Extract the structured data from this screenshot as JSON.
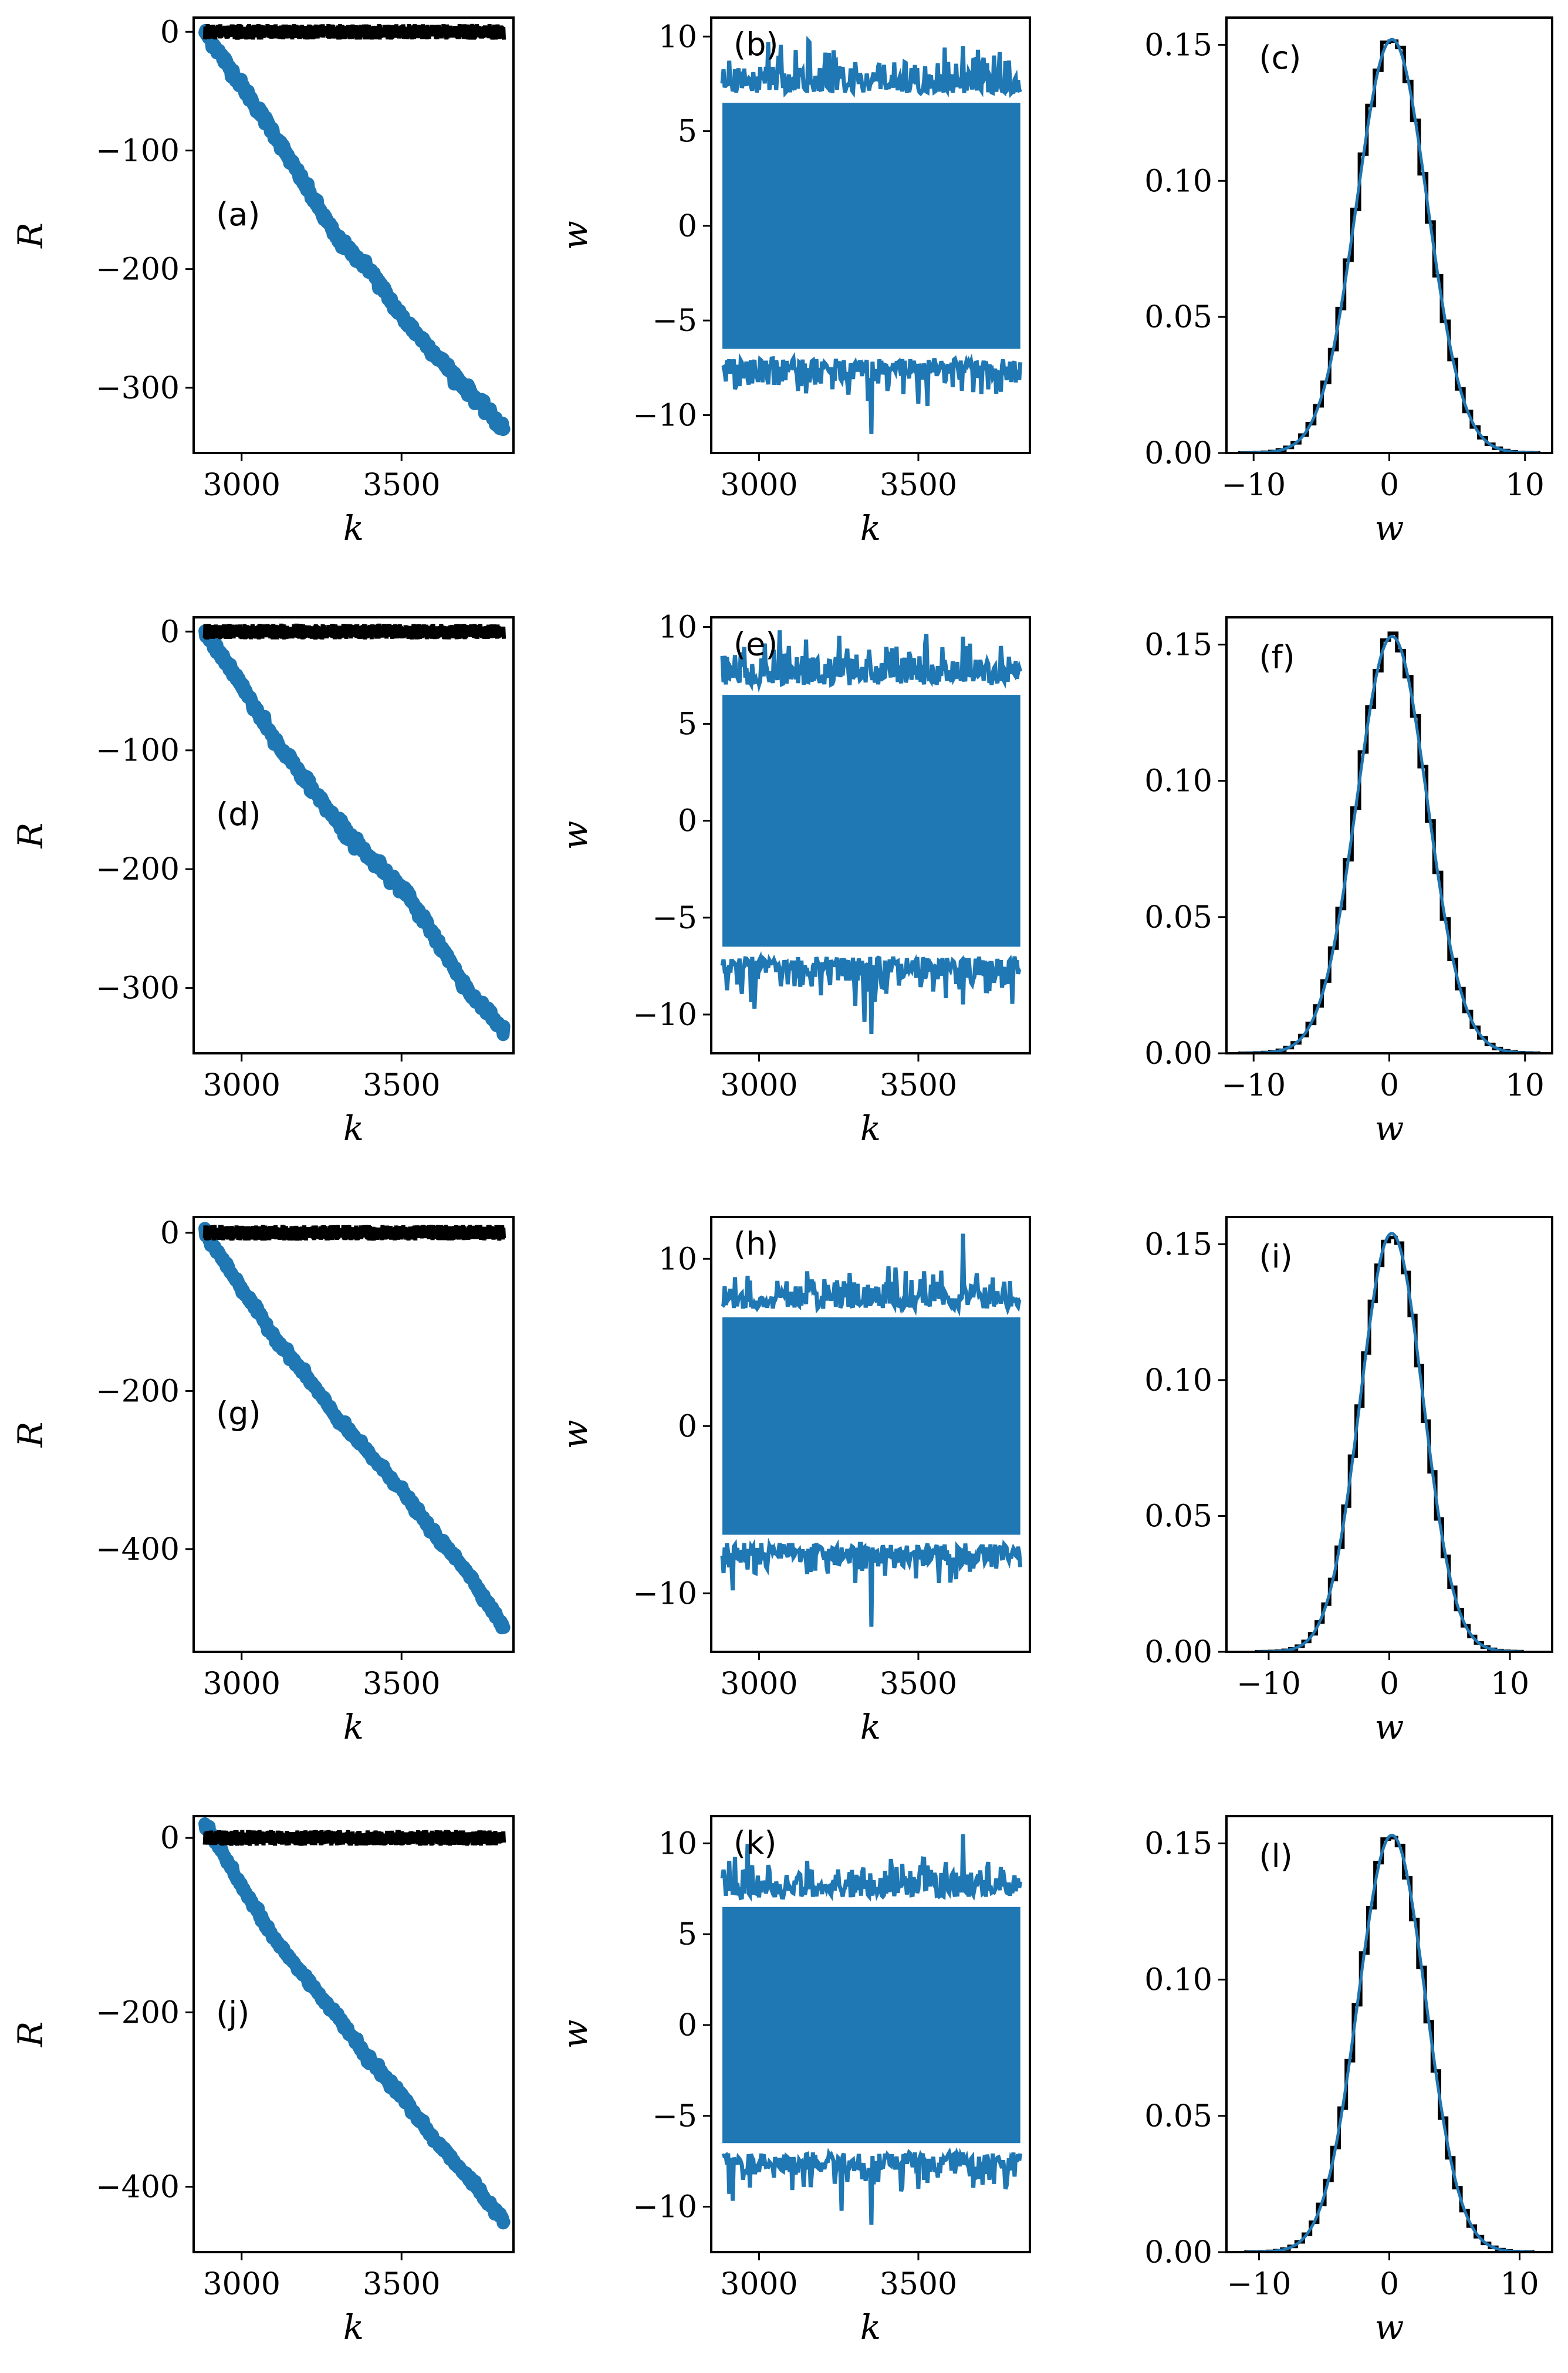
{
  "colors": {
    "blue": "#1f77b4",
    "black": "#000000"
  },
  "chart_data": [
    {
      "type": "line",
      "panel_label": "(a)",
      "xlabel": "k",
      "ylabel": "R",
      "xlim": [
        2850,
        3850
      ],
      "ylim": [
        -355,
        12
      ],
      "xticks": [
        3000,
        3500
      ],
      "yticks": [
        0,
        -100,
        -200,
        -300
      ],
      "xtick_labels": [
        "3000",
        "3500"
      ],
      "ytick_labels": [
        "0",
        "−100",
        "−200",
        "−300"
      ],
      "series": [
        {
          "name": "R",
          "color": "#1f77b4",
          "x": [
            2885,
            3000,
            3100,
            3200,
            3300,
            3400,
            3500,
            3600,
            3700,
            3820
          ],
          "y": [
            0,
            -45,
            -85,
            -130,
            -175,
            -200,
            -240,
            -270,
            -300,
            -335
          ]
        },
        {
          "name": "reference",
          "color": "#000000",
          "x": [
            2885,
            3820
          ],
          "y": [
            0,
            0
          ]
        }
      ]
    },
    {
      "type": "line",
      "panel_label": "(b)",
      "xlabel": "k",
      "ylabel": "w",
      "xlim": [
        2850,
        3850
      ],
      "ylim": [
        -12,
        11
      ],
      "xticks": [
        3000,
        3500
      ],
      "yticks": [
        10,
        5,
        0,
        -5,
        -10
      ],
      "xtick_labels": [
        "3000",
        "3500"
      ],
      "ytick_labels": [
        "10",
        "5",
        "0",
        "−5",
        "−10"
      ],
      "series": [
        {
          "name": "w",
          "color": "#1f77b4",
          "band": [
            -7,
            7
          ],
          "extreme": [
            -11,
            9.5
          ]
        }
      ]
    },
    {
      "type": "histogram",
      "panel_label": "(c)",
      "xlabel": "w",
      "ylabel": "",
      "xlim": [
        -12,
        12
      ],
      "ylim": [
        0,
        0.16
      ],
      "xticks": [
        -10,
        0,
        10
      ],
      "yticks": [
        0.0,
        0.05,
        0.1,
        0.15
      ],
      "xtick_labels": [
        "−10",
        "0",
        "10"
      ],
      "ytick_labels": [
        "0.00",
        "0.05",
        "0.10",
        "0.15"
      ],
      "series": [
        {
          "name": "histogram",
          "color": "#000000",
          "peak": 0.152,
          "mean": 0.2,
          "sigma": 2.6
        },
        {
          "name": "gaussian",
          "color": "#1f77b4",
          "peak": 0.152,
          "mean": 0.2,
          "sigma": 2.6
        }
      ]
    },
    {
      "type": "line",
      "panel_label": "(d)",
      "xlabel": "k",
      "ylabel": "R",
      "xlim": [
        2850,
        3850
      ],
      "ylim": [
        -355,
        12
      ],
      "xticks": [
        3000,
        3500
      ],
      "yticks": [
        0,
        -100,
        -200,
        -300
      ],
      "xtick_labels": [
        "3000",
        "3500"
      ],
      "ytick_labels": [
        "0",
        "−100",
        "−200",
        "−300"
      ],
      "series": [
        {
          "name": "R",
          "color": "#1f77b4",
          "x": [
            2885,
            3000,
            3100,
            3200,
            3300,
            3400,
            3500,
            3600,
            3700,
            3820
          ],
          "y": [
            0,
            -45,
            -90,
            -125,
            -160,
            -190,
            -215,
            -255,
            -300,
            -335
          ]
        },
        {
          "name": "reference",
          "color": "#000000",
          "x": [
            2885,
            3820
          ],
          "y": [
            0,
            0
          ]
        }
      ]
    },
    {
      "type": "line",
      "panel_label": "(e)",
      "xlabel": "k",
      "ylabel": "w",
      "xlim": [
        2850,
        3850
      ],
      "ylim": [
        -12,
        10.5
      ],
      "xticks": [
        3000,
        3500
      ],
      "yticks": [
        10,
        5,
        0,
        -5,
        -10
      ],
      "xtick_labels": [
        "3000",
        "3500"
      ],
      "ytick_labels": [
        "10",
        "5",
        "0",
        "−5",
        "−10"
      ],
      "series": [
        {
          "name": "w",
          "color": "#1f77b4",
          "band": [
            -7,
            7
          ],
          "extreme": [
            -11,
            9.5
          ]
        }
      ]
    },
    {
      "type": "histogram",
      "panel_label": "(f)",
      "xlabel": "w",
      "ylabel": "",
      "xlim": [
        -12,
        12
      ],
      "ylim": [
        0,
        0.16
      ],
      "xticks": [
        -10,
        0,
        10
      ],
      "yticks": [
        0.0,
        0.05,
        0.1,
        0.15
      ],
      "xtick_labels": [
        "−10",
        "0",
        "10"
      ],
      "ytick_labels": [
        "0.00",
        "0.05",
        "0.10",
        "0.15"
      ],
      "series": [
        {
          "name": "histogram",
          "color": "#000000",
          "peak": 0.153,
          "mean": 0.2,
          "sigma": 2.6
        },
        {
          "name": "gaussian",
          "color": "#1f77b4",
          "peak": 0.153,
          "mean": 0.2,
          "sigma": 2.6
        }
      ]
    },
    {
      "type": "line",
      "panel_label": "(g)",
      "xlabel": "k",
      "ylabel": "R",
      "xlim": [
        2850,
        3850
      ],
      "ylim": [
        -530,
        20
      ],
      "xticks": [
        3000,
        3500
      ],
      "yticks": [
        0,
        -200,
        -400
      ],
      "xtick_labels": [
        "3000",
        "3500"
      ],
      "ytick_labels": [
        "0",
        "−200",
        "−400"
      ],
      "series": [
        {
          "name": "R",
          "color": "#1f77b4",
          "x": [
            2885,
            3000,
            3100,
            3200,
            3300,
            3400,
            3500,
            3600,
            3700,
            3820
          ],
          "y": [
            0,
            -70,
            -130,
            -180,
            -235,
            -280,
            -325,
            -380,
            -425,
            -500
          ]
        },
        {
          "name": "reference",
          "color": "#000000",
          "x": [
            2885,
            3820
          ],
          "y": [
            0,
            0
          ]
        }
      ]
    },
    {
      "type": "line",
      "panel_label": "(h)",
      "xlabel": "k",
      "ylabel": "w",
      "xlim": [
        2850,
        3850
      ],
      "ylim": [
        -13.5,
        12.5
      ],
      "xticks": [
        3000,
        3500
      ],
      "yticks": [
        10,
        0,
        -10
      ],
      "xtick_labels": [
        "3000",
        "3500"
      ],
      "ytick_labels": [
        "10",
        "0",
        "−10"
      ],
      "series": [
        {
          "name": "w",
          "color": "#1f77b4",
          "band": [
            -7,
            7
          ],
          "extreme": [
            -12,
            11.5
          ]
        }
      ]
    },
    {
      "type": "histogram",
      "panel_label": "(i)",
      "xlabel": "w",
      "ylabel": "",
      "xlim": [
        -13.5,
        13.5
      ],
      "ylim": [
        0,
        0.16
      ],
      "xticks": [
        -10,
        0,
        10
      ],
      "yticks": [
        0.0,
        0.05,
        0.1,
        0.15
      ],
      "xtick_labels": [
        "−10",
        "0",
        "10"
      ],
      "ytick_labels": [
        "0.00",
        "0.05",
        "0.10",
        "0.15"
      ],
      "series": [
        {
          "name": "histogram",
          "color": "#000000",
          "peak": 0.154,
          "mean": 0.2,
          "sigma": 2.6
        },
        {
          "name": "gaussian",
          "color": "#1f77b4",
          "peak": 0.154,
          "mean": 0.2,
          "sigma": 2.6
        }
      ]
    },
    {
      "type": "line",
      "panel_label": "(j)",
      "xlabel": "k",
      "ylabel": "R",
      "xlim": [
        2850,
        3850
      ],
      "ylim": [
        -475,
        25
      ],
      "xticks": [
        3000,
        3500
      ],
      "yticks": [
        0,
        -200,
        -400
      ],
      "xtick_labels": [
        "3000",
        "3500"
      ],
      "ytick_labels": [
        "0",
        "−200",
        "−400"
      ],
      "series": [
        {
          "name": "R",
          "color": "#1f77b4",
          "x": [
            2885,
            2930,
            3000,
            3100,
            3200,
            3300,
            3400,
            3500,
            3600,
            3700,
            3820
          ],
          "y": [
            15,
            -10,
            -55,
            -115,
            -160,
            -205,
            -255,
            -295,
            -345,
            -385,
            -440
          ]
        },
        {
          "name": "reference",
          "color": "#000000",
          "x": [
            2885,
            3820
          ],
          "y": [
            0,
            0
          ]
        }
      ]
    },
    {
      "type": "line",
      "panel_label": "(k)",
      "xlabel": "k",
      "ylabel": "w",
      "xlim": [
        2850,
        3850
      ],
      "ylim": [
        -12.5,
        11.5
      ],
      "xticks": [
        3000,
        3500
      ],
      "yticks": [
        10,
        5,
        0,
        -5,
        -10
      ],
      "xtick_labels": [
        "3000",
        "3500"
      ],
      "ytick_labels": [
        "10",
        "5",
        "0",
        "−5",
        "−10"
      ],
      "series": [
        {
          "name": "w",
          "color": "#1f77b4",
          "band": [
            -7,
            7
          ],
          "extreme": [
            -11,
            10.5
          ]
        }
      ]
    },
    {
      "type": "histogram",
      "panel_label": "(l)",
      "xlabel": "w",
      "ylabel": "",
      "xlim": [
        -12.5,
        12.5
      ],
      "ylim": [
        0,
        0.16
      ],
      "xticks": [
        -10,
        0,
        10
      ],
      "yticks": [
        0.0,
        0.05,
        0.1,
        0.15
      ],
      "xtick_labels": [
        "−10",
        "0",
        "10"
      ],
      "ytick_labels": [
        "0.00",
        "0.05",
        "0.10",
        "0.15"
      ],
      "series": [
        {
          "name": "histogram",
          "color": "#000000",
          "peak": 0.153,
          "mean": 0.2,
          "sigma": 2.6
        },
        {
          "name": "gaussian",
          "color": "#1f77b4",
          "peak": 0.153,
          "mean": 0.2,
          "sigma": 2.6
        }
      ]
    }
  ]
}
